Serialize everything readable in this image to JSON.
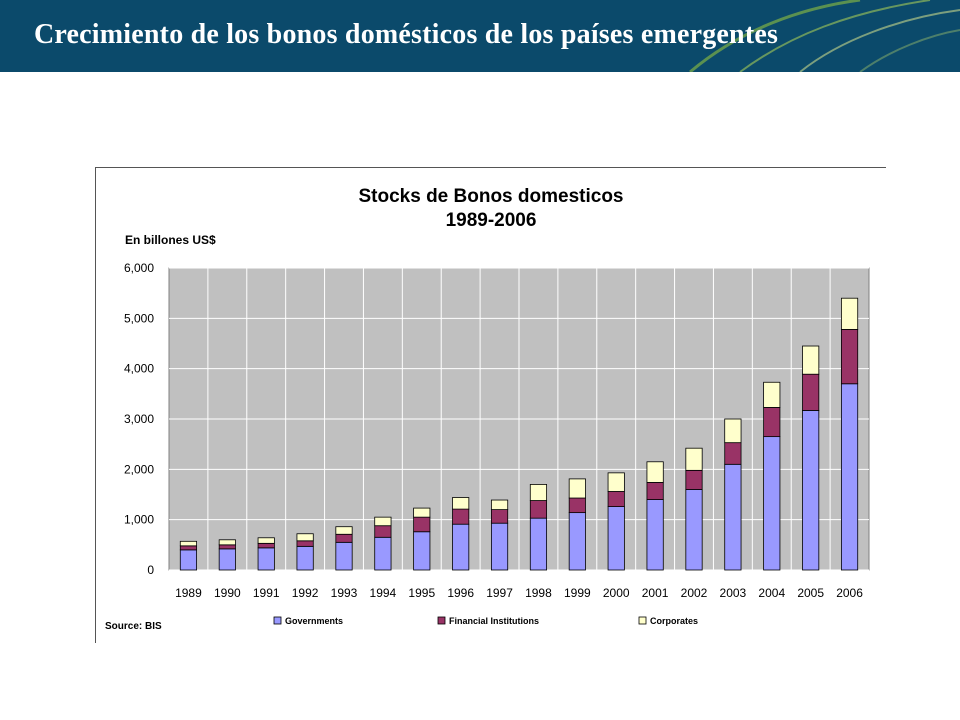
{
  "slide": {
    "title": "Crecimiento de los bonos domésticos de los países emergentes"
  },
  "colors": {
    "header_bg": "#0b4a6b",
    "plot_bg": "#c0c0c0",
    "governments": "#9999ff",
    "financial_institutions": "#993366",
    "corporates": "#ffffcc"
  },
  "chart_data": {
    "type": "bar",
    "stacked": true,
    "title": "Stocks de Bonos domesticos",
    "subtitle": "1989-2006",
    "unit_label": "En billones US$",
    "source": "Source: BIS",
    "categories": [
      "1989",
      "1990",
      "1991",
      "1992",
      "1993",
      "1994",
      "1995",
      "1996",
      "1997",
      "1998",
      "1999",
      "2000",
      "2001",
      "2002",
      "2003",
      "2004",
      "2005",
      "2006"
    ],
    "series": [
      {
        "name": "Governments",
        "values": [
          400,
          420,
          440,
          470,
          550,
          650,
          760,
          910,
          930,
          1030,
          1140,
          1260,
          1400,
          1600,
          2100,
          2650,
          3170,
          3700
        ]
      },
      {
        "name": "Financial Institutions",
        "values": [
          80,
          80,
          90,
          110,
          160,
          230,
          290,
          300,
          270,
          350,
          290,
          300,
          340,
          380,
          430,
          580,
          720,
          1080
        ]
      },
      {
        "name": "Corporates",
        "values": [
          90,
          100,
          110,
          140,
          150,
          170,
          180,
          230,
          190,
          320,
          380,
          370,
          410,
          440,
          470,
          500,
          560,
          620
        ]
      }
    ],
    "yticks": [
      "0",
      "1,000",
      "2,000",
      "3,000",
      "4,000",
      "5,000",
      "6,000"
    ],
    "ylim": [
      0,
      6000
    ],
    "grid": true,
    "legend_position": "bottom"
  }
}
